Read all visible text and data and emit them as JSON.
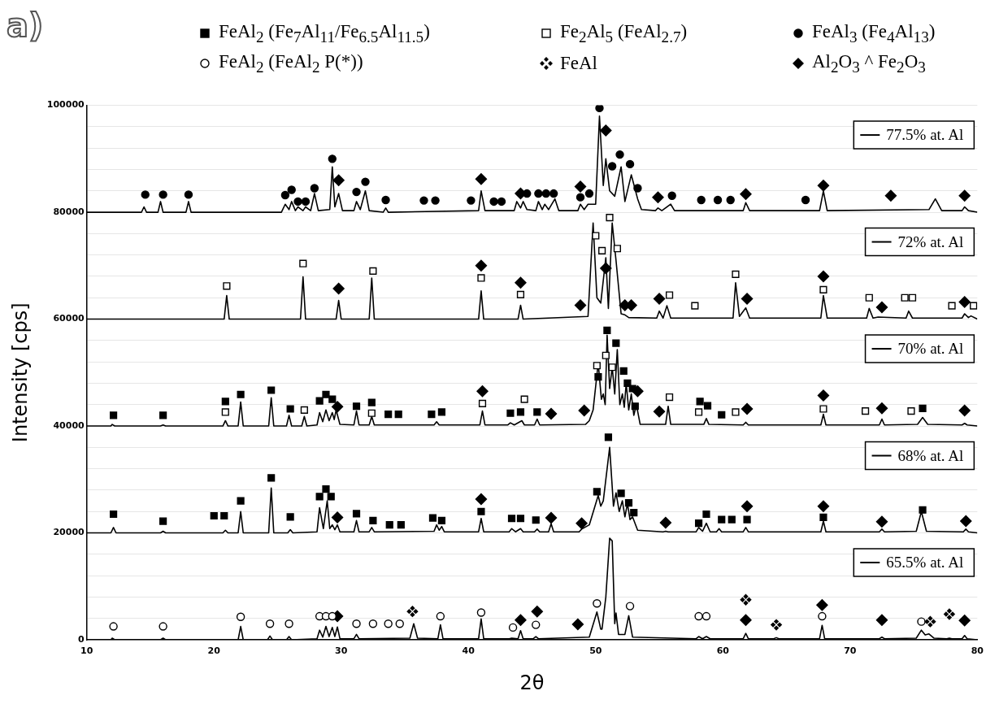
{
  "chart_data": {
    "type": "line",
    "title": "a)",
    "xlabel": "2θ",
    "ylabel": "Intensity [cps]",
    "xlim": [
      10,
      80
    ],
    "xticks": [
      10,
      20,
      30,
      40,
      50,
      60,
      70,
      80
    ],
    "ylim": [
      0,
      100000
    ],
    "yticks": [
      0,
      {
        "value": 4000,
        "label": null
      },
      {
        "value": 8000,
        "label": null
      },
      {
        "value": 12000,
        "label": null
      },
      {
        "value": 16000,
        "label": null
      },
      20000,
      {
        "value": 24000,
        "label": null
      },
      {
        "value": 28000,
        "label": null
      },
      {
        "value": 32000,
        "label": null
      },
      {
        "value": 36000,
        "label": null
      },
      40000,
      {
        "value": 44000,
        "label": null
      },
      {
        "value": 48000,
        "label": null
      },
      {
        "value": 52000,
        "label": null
      },
      {
        "value": 56000,
        "label": null
      },
      60000,
      {
        "value": 64000,
        "label": null
      },
      {
        "value": 68000,
        "label": null
      },
      {
        "value": 72000,
        "label": null
      },
      {
        "value": 76000,
        "label": null
      },
      80000,
      {
        "value": 84000,
        "label": null
      },
      {
        "value": 88000,
        "label": null
      },
      {
        "value": 92000,
        "label": null
      },
      {
        "value": 96000,
        "label": null
      },
      100000
    ],
    "grid": "y",
    "legend": "top",
    "marker": "none",
    "line_style": "solid",
    "series": [
      {
        "name": "FeAl$_{2}$ (Fe$_{7}$Al$_{11}$/Fe$_{6.5}$Al$_{11.5}$)",
        "type": "scatter",
        "marker": "square",
        "color": "#000000",
        "x": [
          12.1,
          16,
          20.9,
          22.1,
          24.5,
          26,
          28.3,
          28.8,
          29.3,
          31.2,
          32.4,
          33.7,
          34.5,
          37.1,
          37.9,
          43.3,
          44.1,
          45.4,
          50.2,
          50.9,
          51.6,
          52.2,
          52.5,
          52.9,
          53.1,
          58.2,
          58.8,
          59.9,
          75.7,
          12.1,
          16,
          20,
          20.8,
          22.1,
          24.5,
          26,
          28.3,
          28.8,
          29.2,
          31.2,
          32.5,
          33.8,
          34.7,
          37.2,
          37.9,
          41,
          43.4,
          44.1,
          45.3,
          50.1,
          51,
          52,
          52.6,
          53,
          58.1,
          58.7,
          59.9,
          60.7,
          61.9,
          67.9,
          75.7
        ],
        "values": [
          42000,
          42000,
          44600,
          45900,
          46700,
          43200,
          44700,
          45900,
          45000,
          43700,
          44400,
          42200,
          42200,
          42200,
          42600,
          42400,
          42600,
          42600,
          49200,
          57900,
          55500,
          50300,
          48000,
          47000,
          43700,
          44600,
          43800,
          42100,
          43300,
          23500,
          22200,
          23200,
          23200,
          26000,
          30300,
          23000,
          26800,
          28200,
          26800,
          23600,
          22300,
          21500,
          21500,
          22800,
          22300,
          24000,
          22700,
          22700,
          22400,
          27700,
          37900,
          27400,
          25600,
          23800,
          21800,
          23500,
          22500,
          22500,
          22500,
          22900,
          24300
        ]
      },
      {
        "name": "Fe$_{2}$Al$_{5}$ (FeAl$_{2.7}$)",
        "type": "scatter",
        "marker": "square",
        "color": "#ffffff",
        "x": [
          21,
          27,
          32.5,
          41,
          44.1,
          50,
          50.5,
          51.1,
          51.7,
          55.8,
          57.8,
          61,
          67.9,
          71.5,
          74.3,
          74.9,
          78,
          79.7,
          20.9,
          27.1,
          32.4,
          41.1,
          44.4,
          50.1,
          50.8,
          51.3,
          55.8,
          58.1,
          61,
          67.9,
          71.2,
          74.8
        ],
        "values": [
          66200,
          70400,
          69000,
          67700,
          64600,
          75600,
          72800,
          79000,
          73200,
          64500,
          62500,
          68400,
          65500,
          64000,
          64000,
          64000,
          62500,
          62500,
          42600,
          43000,
          42400,
          44200,
          45000,
          51300,
          53200,
          51000,
          45400,
          42600,
          42600,
          43200,
          42800,
          42800
        ]
      },
      {
        "name": "FeAl$_{3}$ (Fe$_{4}$Al$_{13}$)",
        "type": "scatter",
        "marker": "circle",
        "color": "#000000",
        "x": [
          14.6,
          16,
          18,
          25.6,
          26.1,
          26.6,
          27.2,
          27.9,
          29.3,
          31.2,
          31.9,
          33.5,
          36.5,
          37.4,
          40.2,
          42,
          42.6,
          44.6,
          45.5,
          46.1,
          46.7,
          48.8,
          49.5,
          50.3,
          51.3,
          51.9,
          52.7,
          53.3,
          56,
          58.3,
          59.6,
          60.6,
          66.5
        ],
        "values": [
          83300,
          83300,
          83300,
          83200,
          84200,
          82000,
          82000,
          84500,
          90000,
          83800,
          85700,
          82300,
          82200,
          82200,
          82200,
          82000,
          82000,
          83500,
          83500,
          83500,
          83500,
          82800,
          83500,
          99500,
          88600,
          90800,
          89000,
          84500,
          83100,
          82300,
          82300,
          82300,
          82300
        ]
      },
      {
        "name": "FeAl$_{2}$ (FeAl$_{2}$ P(*))",
        "type": "scatter",
        "marker": "circle",
        "color": "#ffffff",
        "x": [
          12.1,
          16,
          22.1,
          24.4,
          25.9,
          28.3,
          28.8,
          29.3,
          31.2,
          32.5,
          33.7,
          34.6,
          37.8,
          41,
          43.5,
          45.3,
          50.1,
          52.7,
          58.1,
          58.7,
          67.8,
          75.6
        ],
        "values": [
          2500,
          2500,
          4300,
          3000,
          3000,
          4400,
          4400,
          4400,
          3000,
          3000,
          3000,
          3000,
          4400,
          5100,
          2300,
          2800,
          6800,
          6300,
          4400,
          4400,
          4400,
          3400
        ]
      },
      {
        "name": "FeAl",
        "type": "scatter",
        "marker": "cross",
        "color": "#000000",
        "x": [
          35.6,
          61.8,
          64.2,
          76.3,
          77.8
        ],
        "values": [
          5300,
          7500,
          2800,
          3400,
          4800
        ]
      },
      {
        "name": "Al$_{2}$O$_{3}$ ^ Fe$_{2}$O$_{3}$",
        "type": "scatter",
        "marker": "diamond",
        "color": "#000000",
        "x": [
          29.8,
          41,
          44.1,
          48.8,
          50.8,
          54.9,
          61.8,
          67.9,
          73.2,
          79,
          29.8,
          41,
          44.1,
          48.8,
          50.8,
          52.3,
          52.8,
          55,
          61.9,
          67.9,
          72.5,
          79,
          29.7,
          41.1,
          46.5,
          49.1,
          53.3,
          55,
          61.9,
          67.9,
          72.5,
          79,
          29.7,
          41,
          46.5,
          48.9,
          55.5,
          61.9,
          67.9,
          72.5,
          79.1,
          29.7,
          44.1,
          45.4,
          48.6,
          61.8,
          67.8,
          72.5,
          79
        ],
        "values": [
          86000,
          86200,
          83500,
          84800,
          95300,
          82800,
          83400,
          85000,
          83100,
          83100,
          65700,
          70000,
          66800,
          62600,
          69500,
          62600,
          62600,
          63800,
          63800,
          68000,
          62200,
          63200,
          43600,
          46500,
          42300,
          42900,
          46500,
          42700,
          43200,
          45700,
          43300,
          42900,
          22900,
          26300,
          22800,
          21800,
          21900,
          25000,
          25000,
          22100,
          22200,
          4400,
          3700,
          5300,
          2900,
          3700,
          6500,
          3700,
          3600
        ]
      },
      {
        "name": "77.5% at. Al",
        "color": "#000000",
        "x": [
          10,
          14.3,
          14.5,
          14.7,
          15.6,
          15.8,
          16,
          17.8,
          18,
          18.2,
          25.3,
          25.6,
          25.9,
          26.1,
          26.4,
          26.6,
          27,
          27.2,
          27.6,
          27.9,
          28.2,
          29.1,
          29.3,
          29.5,
          29.8,
          30.1,
          31,
          31.2,
          31.5,
          31.9,
          32.2,
          33.3,
          33.5,
          33.7,
          40.8,
          41,
          41.3,
          43.6,
          43.8,
          44.1,
          44.3,
          44.6,
          45.3,
          45.5,
          45.8,
          46,
          46.3,
          46.8,
          47.1,
          48.6,
          48.8,
          49.1,
          49.4,
          50,
          50.3,
          50.6,
          50.8,
          51.1,
          51.5,
          52,
          52.3,
          52.8,
          53.3,
          53.6,
          54.7,
          54.9,
          55.2,
          55.9,
          56.2,
          61.6,
          61.8,
          62.1,
          67.6,
          67.9,
          68.2,
          76.2,
          76.7,
          77.2,
          78.8,
          79,
          79.3,
          80
        ],
        "values": [
          80000,
          80000,
          81000,
          80000,
          80000,
          82000,
          80000,
          80000,
          82000,
          80000,
          80000,
          81500,
          80500,
          82000,
          80300,
          81000,
          80300,
          81000,
          80300,
          83500,
          80300,
          80500,
          88500,
          81000,
          83500,
          80300,
          80300,
          82000,
          80500,
          84000,
          80300,
          80000,
          80800,
          80000,
          80300,
          84000,
          80300,
          80300,
          82000,
          80800,
          82000,
          80500,
          80300,
          82000,
          80500,
          81500,
          80500,
          82500,
          80300,
          80300,
          81500,
          80500,
          81500,
          81500,
          98000,
          85000,
          90000,
          84000,
          83000,
          88500,
          82000,
          87000,
          82500,
          80500,
          80300,
          80800,
          80300,
          81500,
          80300,
          80300,
          81800,
          80300,
          80300,
          84000,
          80300,
          80500,
          82500,
          80300,
          80300,
          81000,
          80300,
          80000
        ]
      },
      {
        "name": "72% at. Al",
        "color": "#000000",
        "x": [
          10,
          20.8,
          21,
          21.2,
          26.8,
          27,
          27.2,
          29.6,
          29.8,
          30,
          32.2,
          32.4,
          32.6,
          40.8,
          41,
          41.2,
          43.9,
          44.1,
          44.3,
          49.4,
          49.8,
          50.1,
          50.4,
          50.8,
          51,
          51.3,
          51.6,
          52,
          52.3,
          52.6,
          54.8,
          55,
          55.3,
          55.6,
          55.9,
          60.8,
          61,
          61.3,
          61.8,
          62.1,
          67.7,
          67.9,
          68.2,
          71.3,
          71.5,
          71.8,
          72.2,
          74.4,
          74.6,
          74.9,
          78.8,
          79,
          79.3,
          79.5,
          80
        ],
        "values": [
          60000,
          60000,
          64400,
          60000,
          60000,
          67900,
          60000,
          60000,
          63500,
          60000,
          60000,
          67700,
          60000,
          60000,
          65300,
          60000,
          60000,
          62600,
          60000,
          60500,
          78000,
          64000,
          63000,
          71500,
          62000,
          78000,
          71000,
          61000,
          60800,
          60300,
          60200,
          61500,
          60200,
          62500,
          60200,
          60200,
          66800,
          60500,
          62100,
          60200,
          60200,
          64400,
          60200,
          60200,
          62000,
          60200,
          60400,
          60200,
          61500,
          60200,
          60200,
          61000,
          60300,
          60600,
          60000
        ]
      },
      {
        "name": "70% at. Al",
        "color": "#000000",
        "x": [
          10,
          11.9,
          12,
          12.2,
          15.8,
          16,
          16.2,
          20.7,
          20.9,
          21.1,
          21.9,
          22.1,
          22.3,
          24.3,
          24.5,
          24.7,
          25.7,
          25.9,
          26.1,
          26.9,
          27.1,
          27.3,
          28.1,
          28.3,
          28.55,
          28.8,
          29.05,
          29.3,
          29.45,
          29.6,
          29.9,
          31,
          31.2,
          31.4,
          32.2,
          32.4,
          32.6,
          37.3,
          37.5,
          37.7,
          40.9,
          41.1,
          41.3,
          43.1,
          43.3,
          43.6,
          44.2,
          44.4,
          45.2,
          45.4,
          45.6,
          49.2,
          49.5,
          49.8,
          50.2,
          50.45,
          50.6,
          50.75,
          50.9,
          51.1,
          51.3,
          51.5,
          51.7,
          51.9,
          52.1,
          52.25,
          52.4,
          52.6,
          52.8,
          53,
          53.2,
          53.5,
          55.5,
          55.7,
          55.9,
          58.5,
          58.7,
          58.9,
          61.6,
          61.8,
          62,
          67.7,
          67.9,
          68.1,
          72.3,
          72.5,
          72.7,
          75.3,
          75.7,
          76.1,
          78.8,
          79,
          79.2,
          80
        ],
        "values": [
          40000,
          40000,
          40300,
          40000,
          40000,
          40200,
          40000,
          40000,
          41000,
          40000,
          40000,
          44500,
          40000,
          40000,
          45300,
          40000,
          40000,
          42000,
          40000,
          40000,
          41800,
          40000,
          40200,
          42500,
          40800,
          43000,
          41000,
          42500,
          41200,
          43000,
          40300,
          40200,
          42800,
          40200,
          40200,
          41800,
          40200,
          40200,
          40800,
          40200,
          40200,
          42800,
          40200,
          40200,
          40600,
          40200,
          41000,
          40200,
          40200,
          41300,
          40200,
          40300,
          41000,
          43000,
          51800,
          45000,
          46000,
          44000,
          57000,
          47000,
          51000,
          46000,
          54300,
          44000,
          46000,
          43500,
          48000,
          43000,
          46000,
          42000,
          44000,
          40300,
          40300,
          43700,
          40300,
          40300,
          41400,
          40300,
          40200,
          40700,
          40200,
          40200,
          42200,
          40200,
          40200,
          41300,
          40200,
          40300,
          41600,
          40300,
          40200,
          40500,
          40200,
          40000
        ]
      },
      {
        "name": "68% at. Al",
        "color": "#000000",
        "x": [
          10,
          11.9,
          12.1,
          12.3,
          15.8,
          16,
          16.2,
          20.7,
          20.9,
          21.1,
          21.9,
          22.1,
          22.3,
          24.3,
          24.5,
          24.7,
          25.8,
          26,
          26.2,
          28.1,
          28.3,
          28.6,
          28.9,
          29.1,
          29.3,
          29.5,
          29.7,
          29.9,
          31,
          31.2,
          31.4,
          32.2,
          32.4,
          32.6,
          37.3,
          37.5,
          37.7,
          37.9,
          38.1,
          40.8,
          41,
          41.2,
          43.2,
          43.4,
          43.7,
          44.1,
          44.3,
          45.2,
          45.4,
          45.6,
          46.3,
          46.5,
          46.7,
          48.7,
          48.9,
          49.5,
          50.2,
          50.4,
          50.6,
          51.1,
          51.4,
          51.6,
          51.85,
          52.1,
          52.3,
          52.5,
          52.7,
          52.9,
          53.3,
          55.3,
          55.5,
          55.7,
          57.9,
          58.1,
          58.4,
          58.7,
          59,
          59.5,
          59.7,
          59.9,
          61.6,
          61.8,
          62,
          67.7,
          67.9,
          68.1,
          72.3,
          72.5,
          72.7,
          75.2,
          75.6,
          76,
          78.9,
          79.1,
          79.3,
          80
        ],
        "values": [
          20000,
          20000,
          21000,
          20000,
          20000,
          20300,
          20000,
          20000,
          20500,
          20000,
          20000,
          24000,
          20000,
          20000,
          28400,
          20000,
          20000,
          20600,
          20000,
          20200,
          24700,
          20800,
          26000,
          20800,
          21500,
          20600,
          21500,
          20200,
          20200,
          22300,
          20200,
          20200,
          21000,
          20200,
          20300,
          21500,
          20500,
          21200,
          20200,
          20200,
          22700,
          20200,
          20200,
          20800,
          20200,
          20800,
          20200,
          20200,
          20700,
          20200,
          20200,
          21700,
          20200,
          20200,
          20700,
          21500,
          27000,
          25000,
          26000,
          36000,
          25000,
          27500,
          24000,
          26000,
          23000,
          25500,
          22500,
          23000,
          20500,
          20200,
          20300,
          20200,
          20200,
          21000,
          20300,
          21800,
          20200,
          20200,
          20800,
          20200,
          20200,
          21000,
          20200,
          20200,
          22200,
          20200,
          20200,
          20700,
          20200,
          20300,
          24000,
          20300,
          20200,
          20700,
          20200,
          20000
        ]
      },
      {
        "name": "65.5% at. Al",
        "color": "#000000",
        "x": [
          10,
          11.9,
          12,
          12.2,
          15.8,
          16,
          16.2,
          21.9,
          22.1,
          22.3,
          24.2,
          24.4,
          24.6,
          25.7,
          25.9,
          26.1,
          28.1,
          28.3,
          28.55,
          28.8,
          29.05,
          29.3,
          29.5,
          29.7,
          29.9,
          31,
          31.2,
          31.4,
          35.4,
          35.7,
          36,
          37.6,
          37.8,
          38,
          40.8,
          41,
          41.2,
          43.2,
          43.4,
          43.9,
          44.1,
          44.3,
          45.1,
          45.3,
          45.5,
          49.5,
          50.1,
          50.4,
          50.5,
          50.8,
          51.1,
          51.3,
          51.5,
          51.6,
          51.8,
          52.3,
          52.6,
          52.9,
          57.9,
          58.1,
          58.4,
          58.7,
          59,
          61.6,
          61.8,
          62,
          64,
          64.2,
          64.4,
          67.6,
          67.8,
          68,
          72.3,
          72.5,
          72.7,
          75.2,
          75.6,
          75.9,
          76.2,
          76.6,
          77.6,
          77.8,
          78,
          78.8,
          79,
          79.2,
          80
        ],
        "values": [
          0,
          0,
          300,
          0,
          0,
          300,
          0,
          0,
          2500,
          0,
          0,
          700,
          0,
          0,
          600,
          0,
          200,
          1800,
          500,
          2500,
          600,
          2300,
          600,
          2400,
          200,
          200,
          1000,
          200,
          300,
          3000,
          300,
          200,
          2800,
          200,
          200,
          3900,
          200,
          200,
          300,
          200,
          1700,
          200,
          200,
          600,
          200,
          500,
          5200,
          2000,
          2000,
          8000,
          19000,
          18500,
          3000,
          5000,
          1000,
          1000,
          4500,
          500,
          200,
          600,
          200,
          600,
          200,
          200,
          1200,
          200,
          200,
          400,
          200,
          200,
          2700,
          200,
          200,
          500,
          200,
          300,
          1800,
          900,
          1100,
          300,
          200,
          300,
          200,
          200,
          800,
          200,
          0
        ]
      }
    ]
  }
}
